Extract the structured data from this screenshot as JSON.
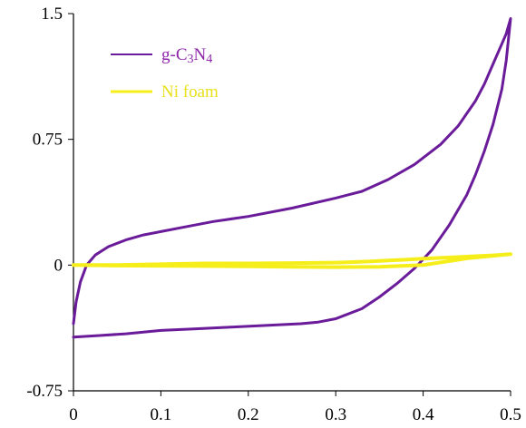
{
  "chart_data": {
    "type": "line",
    "title": "",
    "xlabel": "",
    "ylabel": "",
    "xlim": [
      0,
      0.5
    ],
    "ylim": [
      -0.75,
      1.5
    ],
    "x_ticks": [
      0,
      0.1,
      0.2,
      0.3,
      0.4,
      0.5
    ],
    "x_tick_labels": [
      "0",
      "0.1",
      "0.2",
      "0.3",
      "0.4",
      "0.5"
    ],
    "y_ticks": [
      -0.75,
      0,
      0.75,
      1.5
    ],
    "y_tick_labels": [
      "-0.75",
      "0",
      "0.75",
      "1.5"
    ],
    "grid": false,
    "legend_position": "top-left",
    "legend": [
      {
        "label_main": "g-C",
        "label_sub1": "3",
        "label_mid": "N",
        "label_sub2": "4"
      },
      {
        "label": "Ni foam"
      }
    ],
    "series": [
      {
        "name": "g-C3N4",
        "color": "#6a1b9a",
        "x": [
          0.0,
          0.003,
          0.008,
          0.015,
          0.025,
          0.04,
          0.06,
          0.08,
          0.1,
          0.13,
          0.16,
          0.2,
          0.25,
          0.3,
          0.33,
          0.36,
          0.39,
          0.42,
          0.44,
          0.46,
          0.47,
          0.48,
          0.49,
          0.495,
          0.5,
          0.5,
          0.495,
          0.49,
          0.48,
          0.47,
          0.46,
          0.45,
          0.43,
          0.41,
          0.39,
          0.37,
          0.35,
          0.33,
          0.31,
          0.3,
          0.28,
          0.26,
          0.22,
          0.18,
          0.14,
          0.1,
          0.06,
          0.03,
          0.0
        ],
        "y": [
          -0.35,
          -0.22,
          -0.1,
          0.0,
          0.06,
          0.11,
          0.15,
          0.18,
          0.2,
          0.23,
          0.26,
          0.29,
          0.34,
          0.4,
          0.44,
          0.51,
          0.6,
          0.72,
          0.83,
          0.98,
          1.08,
          1.2,
          1.32,
          1.38,
          1.47,
          1.47,
          1.22,
          1.05,
          0.84,
          0.68,
          0.54,
          0.42,
          0.24,
          0.09,
          -0.02,
          -0.11,
          -0.19,
          -0.26,
          -0.3,
          -0.32,
          -0.34,
          -0.35,
          -0.36,
          -0.37,
          -0.38,
          -0.39,
          -0.41,
          -0.42,
          -0.43
        ]
      },
      {
        "name": "Ni foam",
        "color": "#f5ee1a",
        "x": [
          0.0,
          0.05,
          0.1,
          0.15,
          0.2,
          0.25,
          0.3,
          0.32,
          0.34,
          0.36,
          0.38,
          0.4,
          0.42,
          0.44,
          0.46,
          0.48,
          0.5,
          0.5,
          0.45,
          0.4,
          0.35,
          0.3,
          0.25,
          0.2,
          0.15,
          0.1,
          0.05,
          0.0
        ],
        "y": [
          0.0,
          0.0,
          0.005,
          0.01,
          0.01,
          0.012,
          0.015,
          0.018,
          0.022,
          0.027,
          0.032,
          0.038,
          0.043,
          0.048,
          0.053,
          0.058,
          0.065,
          0.065,
          0.04,
          0.0,
          -0.01,
          -0.012,
          -0.01,
          -0.008,
          -0.006,
          -0.004,
          -0.003,
          0.0
        ]
      }
    ]
  }
}
